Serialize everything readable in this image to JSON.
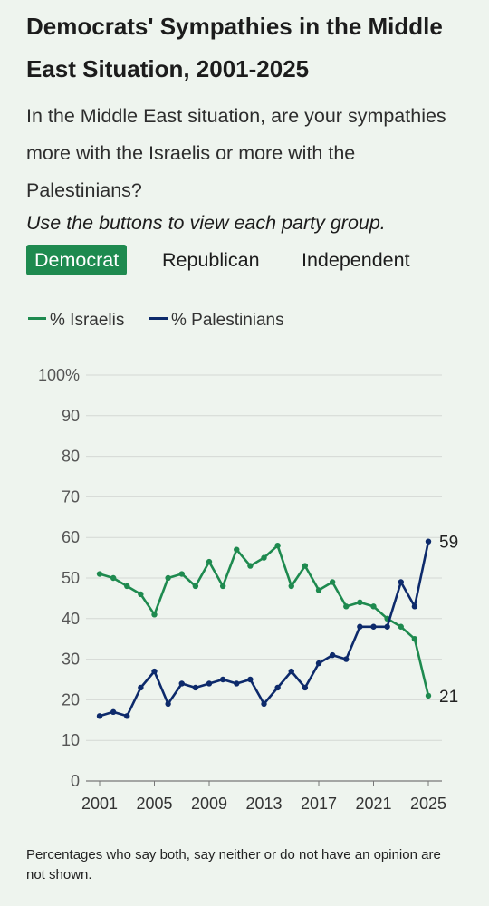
{
  "title": "Democrats' Sympathies in the Middle East Situation, 2001-2025",
  "question": "In the Middle East situation, are your sympathies more with the Israelis or more with the Palestinians?",
  "instructions": "Use the buttons to view each party group.",
  "tabs": [
    {
      "label": "Democrat",
      "active": true
    },
    {
      "label": "Republican",
      "active": false
    },
    {
      "label": "Independent",
      "active": false
    }
  ],
  "legend": [
    {
      "label": "% Israelis",
      "color": "#1e8a4f"
    },
    {
      "label": "% Palestinians",
      "color": "#0d2a6b"
    }
  ],
  "footnote": "Percentages who say both, say neither or do not have an opinion are not shown.",
  "chart_data": {
    "type": "line",
    "x": [
      2001,
      2002,
      2003,
      2004,
      2005,
      2006,
      2007,
      2008,
      2009,
      2010,
      2011,
      2012,
      2013,
      2014,
      2015,
      2016,
      2017,
      2018,
      2019,
      2020,
      2021,
      2022,
      2023,
      2024,
      2025
    ],
    "series": [
      {
        "name": "% Israelis",
        "color": "#1e8a4f",
        "values": [
          51,
          50,
          48,
          46,
          41,
          50,
          51,
          48,
          54,
          48,
          57,
          53,
          55,
          58,
          48,
          53,
          47,
          49,
          43,
          44,
          43,
          40,
          38,
          35,
          21
        ]
      },
      {
        "name": "% Palestinians",
        "color": "#0d2a6b",
        "values": [
          16,
          17,
          16,
          23,
          27,
          19,
          24,
          23,
          24,
          25,
          24,
          25,
          19,
          23,
          27,
          23,
          29,
          31,
          30,
          38,
          38,
          38,
          49,
          43,
          59
        ]
      }
    ],
    "end_labels": [
      "21",
      "59"
    ],
    "x_ticks": [
      "2001",
      "2005",
      "2009",
      "2013",
      "2017",
      "2021",
      "2025"
    ],
    "y_ticks": [
      "0",
      "10",
      "20",
      "30",
      "40",
      "50",
      "60",
      "70",
      "80",
      "90",
      "100%"
    ],
    "ylim": [
      0,
      100
    ],
    "grid": true,
    "legend_position": "top-left"
  }
}
